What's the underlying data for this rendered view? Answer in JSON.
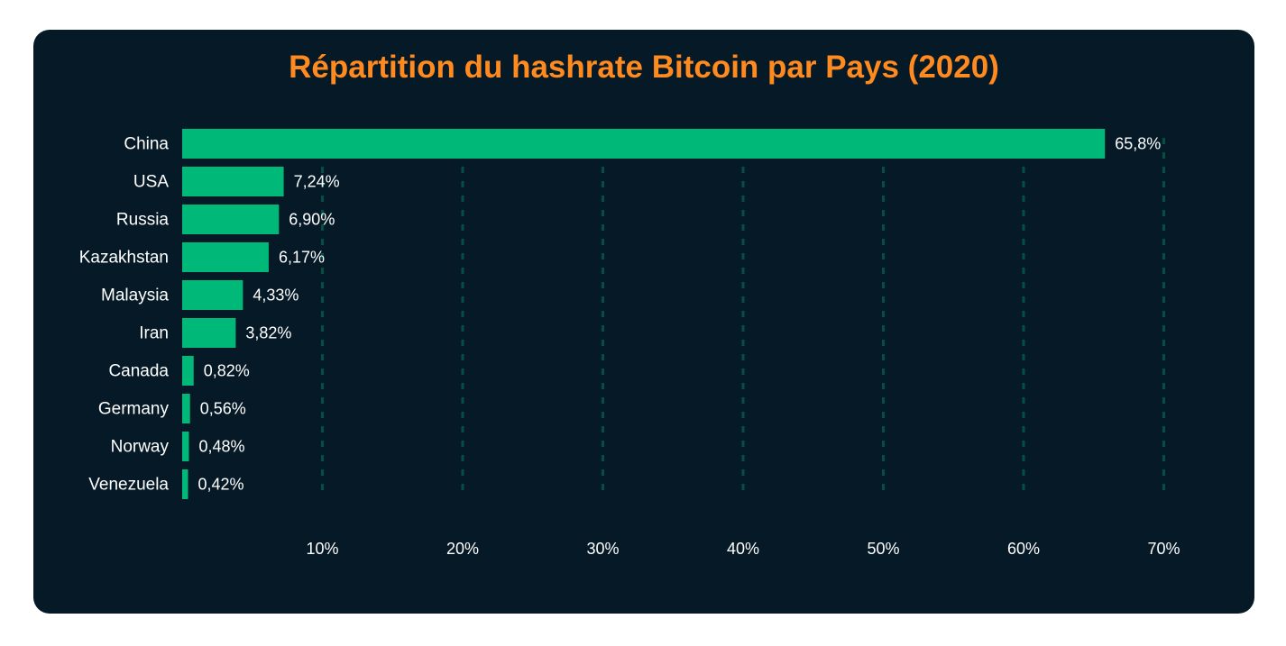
{
  "title": "Répartition du hashrate Bitcoin par Pays (2020)",
  "colors": {
    "background": "#061927",
    "bar": "#00b877",
    "title": "#ff8a1f",
    "text": "#ffffff",
    "grid": "#00b877"
  },
  "chart_data": {
    "type": "bar",
    "orientation": "horizontal",
    "title": "Répartition du hashrate Bitcoin par Pays (2020)",
    "xlabel": "",
    "ylabel": "",
    "categories": [
      "China",
      "USA",
      "Russia",
      "Kazakhstan",
      "Malaysia",
      "Iran",
      "Canada",
      "Germany",
      "Norway",
      "Venezuela"
    ],
    "values": [
      65.8,
      7.24,
      6.9,
      6.17,
      4.33,
      3.82,
      0.82,
      0.56,
      0.48,
      0.42
    ],
    "value_labels": [
      "65,8%",
      "7,24%",
      "6,90%",
      "6,17%",
      "4,33%",
      "3,82%",
      "0,82%",
      "0,56%",
      "0,48%",
      "0,42%"
    ],
    "xlim": [
      0,
      70
    ],
    "xticks": [
      10,
      20,
      30,
      40,
      50,
      60,
      70
    ],
    "xtick_labels": [
      "10%",
      "20%",
      "30%",
      "40%",
      "50%",
      "60%",
      "70%"
    ],
    "grid": "vertical-dashed",
    "legend": "none"
  }
}
